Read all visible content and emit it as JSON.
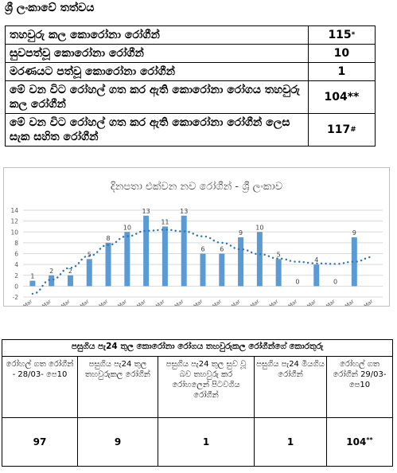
{
  "title": "ශ්‍රී ලංකාවේ තත්වය",
  "status_rows": [
    {
      "label": "තහවුරු කල කොරෝනා රෝගීන්",
      "value": "115",
      "mark": "*"
    },
    {
      "label": "සුවපත්වූ කොරෝනා රෝගීන්",
      "value": "10",
      "mark": ""
    },
    {
      "label": "මරණයට පත්වූ කොරෝනා රෝගීන්",
      "value": "1",
      "mark": ""
    },
    {
      "label": "මේ වන විට රෝහල් ගත කර ඇති කොරෝනා රෝගය තහවුරු කල රෝගීන්",
      "value": "104**",
      "mark": ""
    },
    {
      "label": "මේ වන විට රෝහල් ගත කර ඇති කොරෝනා රෝගීන් ලෙස සැක සහිත රෝගීන්",
      "value": "117",
      "mark": "#"
    }
  ],
  "chart_data": {
    "type": "bar",
    "title": "දිනපතා එක්වන නව රෝගීන් - ශ්‍රී ලංකාව",
    "categories": [
      "11-Mar",
      "12-Mar",
      "13-Mar",
      "14-Mar",
      "15-Mar",
      "16-Mar",
      "17-Mar",
      "18-Mar",
      "19-Mar",
      "20-Mar",
      "21-Mar",
      "22-Mar",
      "23-Mar",
      "24-Mar",
      "25-Mar",
      "26-Mar",
      "27-Mar",
      "28-Mar",
      "29-Mar"
    ],
    "values": [
      1,
      2,
      2,
      5,
      8,
      10,
      13,
      11,
      13,
      6,
      6,
      9,
      10,
      5,
      0,
      4,
      0,
      9,
      null
    ],
    "data_labels": [
      "1",
      "2",
      "2",
      "5",
      "8",
      "10",
      "13",
      "11",
      "13",
      "6",
      "6",
      "9",
      "10",
      "5",
      "0",
      "4",
      "0",
      "9",
      ""
    ],
    "trend": [
      -1.4,
      1.2,
      3.4,
      5.6,
      7.6,
      9.2,
      10.2,
      10.4,
      10.1,
      9.2,
      8.0,
      6.8,
      5.9,
      5.1,
      4.5,
      4.2,
      4.1,
      4.5,
      5.4
    ],
    "yticks": [
      "-2",
      "0",
      "2",
      "4",
      "6",
      "8",
      "10",
      "12",
      "14"
    ],
    "ylim": [
      -2,
      14
    ],
    "bar_color": "#5b9bd5",
    "trend_color": "#2e75b6",
    "grid": true,
    "xlabel": "",
    "ylabel": ""
  },
  "recovery": {
    "header": "පසුගිය පැ24 තුල කොරෝනා රෝගය තහවුරුකල රෝගීන්ගේ කොරතුරු",
    "columns": [
      "රෝහල් ගත රෝගීන් - 28/03- පෙ10",
      "පසුගිය පැ24 තුල තහවුරුකල රෝගීන්",
      "පසුගිය පැ24 තුල සුව වූ බව තහවුරු කර රෝහලෙන් පිටවගිය රෝගීන්",
      "පසුගිය පැ24 මියගිය රෝගීන්",
      "රෝහල් ගත රෝගීන් 29/03- පෙ10"
    ],
    "values": [
      "97",
      "9",
      "1",
      "1",
      "104"
    ],
    "marks": [
      "",
      "",
      "",
      "",
      "**"
    ]
  }
}
